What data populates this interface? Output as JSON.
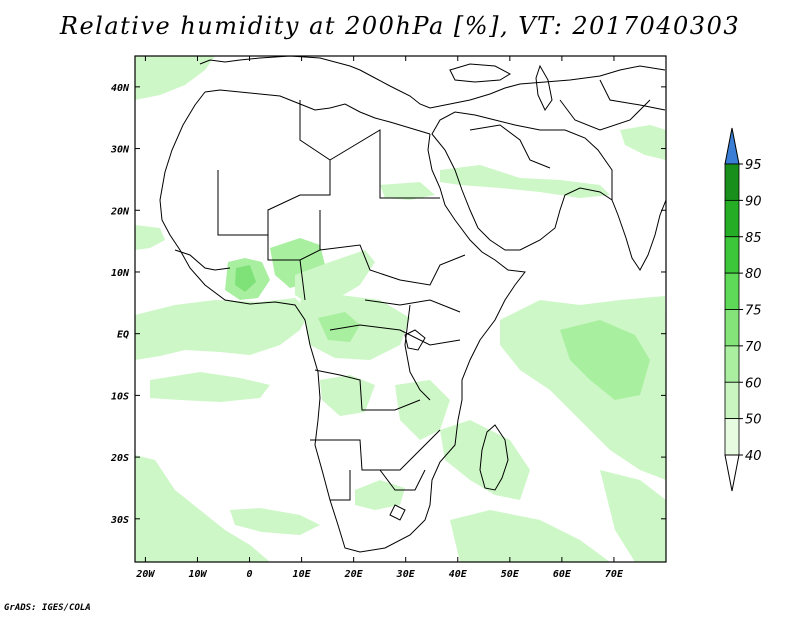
{
  "title": "Relative humidity at 200hPa [%], VT: 2017040303",
  "credit": "GrADS: IGES/COLA",
  "map": {
    "lon_range": [
      -22,
      80
    ],
    "lat_range": [
      -37,
      45
    ],
    "lon_ticks": [
      "20W",
      "10W",
      "0",
      "10E",
      "20E",
      "30E",
      "40E",
      "50E",
      "60E",
      "70E"
    ],
    "lat_ticks": [
      "40N",
      "30N",
      "20N",
      "10N",
      "EQ",
      "10S",
      "20S",
      "30S"
    ]
  },
  "colorbar": {
    "levels": [
      "40",
      "50",
      "60",
      "70",
      "75",
      "80",
      "85",
      "90",
      "95"
    ],
    "colors": [
      "#ffffff",
      "#e6fbe0",
      "#c8f5c0",
      "#a9ef9f",
      "#84e47a",
      "#5fd958",
      "#3cc73a",
      "#24ad25",
      "#178f1a"
    ],
    "overflow_color": "#3a7fd5",
    "underflow_color": "#ffffff"
  },
  "fill_colors": {
    "light": "#cdf7c6",
    "medium": "#a8ef9f",
    "strong": "#7fe279"
  }
}
